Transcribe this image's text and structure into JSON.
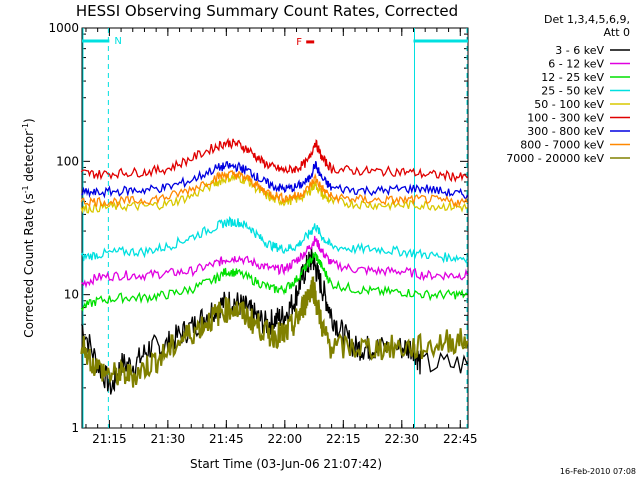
{
  "chart_data": {
    "type": "line",
    "title": "HESSI Observing Summary Count Rates, Corrected",
    "xlabel": "Start Time (03-Jun-06 21:07:42)",
    "ylabel": "Corrected Count Rate (s",
    "ylabel_sup1": "-1",
    "ylabel_mid": " detector",
    "ylabel_sup2": "-1",
    "ylabel_end": ")",
    "yscale": "log",
    "ylim": [
      1,
      1000
    ],
    "y_ticks": [
      {
        "value": 1,
        "label": "1"
      },
      {
        "value": 10,
        "label": "10"
      },
      {
        "value": 100,
        "label": "100"
      },
      {
        "value": 1000,
        "label": "1000"
      }
    ],
    "x_range_minutes": [
      21.133,
      22.783
    ],
    "x_ticks": [
      {
        "value": 21.25,
        "label": "21:15"
      },
      {
        "value": 21.5,
        "label": "21:30"
      },
      {
        "value": 21.75,
        "label": "21:45"
      },
      {
        "value": 22.0,
        "label": "22:00"
      },
      {
        "value": 22.25,
        "label": "22:15"
      },
      {
        "value": 22.5,
        "label": "22:30"
      },
      {
        "value": 22.75,
        "label": "22:45"
      }
    ],
    "legend_header": [
      "Det 1,3,4,5,6,9,",
      "Att 0"
    ],
    "legend_placement": "right",
    "series": [
      {
        "name": "3 - 6 keV",
        "color": "#000000",
        "t": [
          21.13,
          21.2,
          21.26,
          21.3,
          21.36,
          21.42,
          21.48,
          21.55,
          21.62,
          21.68,
          21.73,
          21.78,
          21.83,
          21.87,
          21.92,
          21.96,
          22.0,
          22.04,
          22.07,
          22.1,
          22.12,
          22.14,
          22.17,
          22.2,
          22.25,
          22.3,
          22.35,
          22.4,
          22.5,
          22.55,
          22.58,
          22.78
        ],
        "v": [
          6,
          3,
          2,
          3,
          3,
          4,
          4,
          5,
          6,
          7.5,
          8.5,
          9,
          8,
          7,
          6,
          6.5,
          7,
          9,
          13,
          17,
          19,
          14,
          10,
          7,
          5,
          4,
          4,
          4,
          4,
          4,
          3,
          3
        ]
      },
      {
        "name": "6 - 12 keV",
        "color": "#e000e0",
        "t": [
          21.13,
          21.2,
          21.3,
          21.4,
          21.5,
          21.6,
          21.7,
          21.75,
          21.8,
          21.88,
          21.95,
          22.0,
          22.05,
          22.1,
          22.13,
          22.16,
          22.2,
          22.3,
          22.4,
          22.5,
          22.6,
          22.7,
          22.78
        ],
        "v": [
          12,
          13.5,
          14,
          14,
          14.5,
          15,
          17,
          18.5,
          19,
          17,
          15.5,
          15.5,
          18,
          22,
          26,
          21,
          17,
          15.5,
          15,
          15,
          14,
          14,
          14
        ]
      },
      {
        "name": "12 - 25 keV",
        "color": "#00e000",
        "t": [
          21.13,
          21.2,
          21.3,
          21.4,
          21.5,
          21.6,
          21.7,
          21.75,
          21.8,
          21.88,
          21.95,
          22.0,
          22.05,
          22.1,
          22.13,
          22.16,
          22.2,
          22.3,
          22.4,
          22.5,
          22.6,
          22.7,
          22.78
        ],
        "v": [
          8,
          9,
          9.5,
          9.5,
          10,
          11,
          13,
          15,
          14.5,
          12.5,
          11,
          11,
          13,
          17,
          20,
          16,
          12,
          11,
          10.5,
          10.5,
          10,
          10,
          10
        ]
      },
      {
        "name": "25 - 50 keV",
        "color": "#00e0e0",
        "t": [
          21.13,
          21.2,
          21.3,
          21.4,
          21.5,
          21.6,
          21.7,
          21.75,
          21.8,
          21.85,
          21.9,
          21.95,
          22.0,
          22.05,
          22.1,
          22.13,
          22.16,
          22.2,
          22.3,
          22.4,
          22.5,
          22.6,
          22.7,
          22.78
        ],
        "v": [
          19,
          20,
          21,
          21,
          23,
          27,
          32,
          35,
          35,
          32,
          26,
          23,
          22,
          23,
          28,
          33,
          27,
          23,
          22,
          22,
          21,
          20,
          19,
          19
        ]
      },
      {
        "name": "50 - 100 keV",
        "color": "#d8c800",
        "t": [
          21.13,
          21.2,
          21.3,
          21.4,
          21.5,
          21.6,
          21.7,
          21.75,
          21.8,
          21.85,
          21.9,
          21.95,
          22.0,
          22.05,
          22.1,
          22.13,
          22.16,
          22.2,
          22.3,
          22.4,
          22.5,
          22.6,
          22.7,
          22.78
        ],
        "v": [
          44,
          45,
          46,
          46,
          48,
          55,
          68,
          75,
          76,
          70,
          58,
          52,
          50,
          52,
          58,
          68,
          56,
          50,
          48,
          47,
          47,
          47,
          46,
          45
        ]
      },
      {
        "name": "100 - 300 keV",
        "color": "#e00000",
        "t": [
          21.13,
          21.2,
          21.3,
          21.4,
          21.5,
          21.6,
          21.7,
          21.75,
          21.8,
          21.85,
          21.9,
          21.95,
          22.0,
          22.05,
          22.1,
          22.13,
          22.16,
          22.2,
          22.3,
          22.4,
          22.5,
          22.6,
          22.7,
          22.78
        ],
        "v": [
          82,
          80,
          82,
          83,
          88,
          105,
          128,
          138,
          135,
          120,
          100,
          90,
          85,
          88,
          100,
          140,
          105,
          88,
          85,
          84,
          84,
          80,
          78,
          75
        ]
      },
      {
        "name": "300 - 800 keV",
        "color": "#0000e0",
        "t": [
          21.13,
          21.2,
          21.3,
          21.4,
          21.5,
          21.6,
          21.7,
          21.75,
          21.8,
          21.85,
          21.9,
          21.95,
          22.0,
          22.05,
          22.1,
          22.13,
          22.16,
          22.2,
          22.3,
          22.4,
          22.5,
          22.6,
          22.7,
          22.78
        ],
        "v": [
          58,
          58,
          60,
          61,
          64,
          72,
          88,
          92,
          91,
          84,
          72,
          65,
          62,
          64,
          72,
          95,
          74,
          63,
          61,
          60,
          62,
          63,
          58,
          56
        ]
      },
      {
        "name": "800 - 7000 keV",
        "color": "#ff8800",
        "t": [
          21.13,
          21.2,
          21.3,
          21.4,
          21.5,
          21.6,
          21.7,
          21.75,
          21.8,
          21.85,
          21.9,
          21.95,
          22.0,
          22.05,
          22.1,
          22.13,
          22.16,
          22.2,
          22.3,
          22.4,
          22.5,
          22.6,
          22.7,
          22.78
        ],
        "v": [
          50,
          50,
          50,
          51,
          54,
          62,
          75,
          80,
          79,
          73,
          62,
          56,
          53,
          55,
          62,
          75,
          62,
          54,
          52,
          51,
          51,
          52,
          50,
          49
        ]
      },
      {
        "name": "7000 - 20000 keV",
        "color": "#808000",
        "t": [
          21.13,
          21.18,
          21.25,
          21.3,
          21.36,
          21.42,
          21.48,
          21.55,
          21.62,
          21.68,
          21.73,
          21.78,
          21.83,
          21.88,
          21.93,
          21.97,
          22.0,
          22.04,
          22.07,
          22.1,
          22.12,
          22.14,
          22.17,
          22.2,
          22.3,
          22.4,
          22.5,
          22.6,
          22.7,
          22.78
        ],
        "v": [
          4.5,
          3,
          2.5,
          2.5,
          2.5,
          3,
          3.5,
          4.5,
          5.5,
          6.5,
          7.5,
          8,
          7,
          6,
          5,
          5,
          5,
          6,
          7.5,
          10,
          12,
          8,
          5,
          4,
          4,
          4,
          4,
          4,
          4.5,
          4.5
        ]
      }
    ],
    "annotations": [
      {
        "label": "N",
        "color": "#00e0e0",
        "time": 21.25
      },
      {
        "label": "F",
        "color": "#e00000",
        "time": 22.07,
        "value": 800
      }
    ],
    "footer": "16-Feb-2010 07:08",
    "night_periods": [
      {
        "start": 21.133,
        "end": 21.25
      },
      {
        "start": 22.55,
        "end": 22.783
      }
    ]
  }
}
